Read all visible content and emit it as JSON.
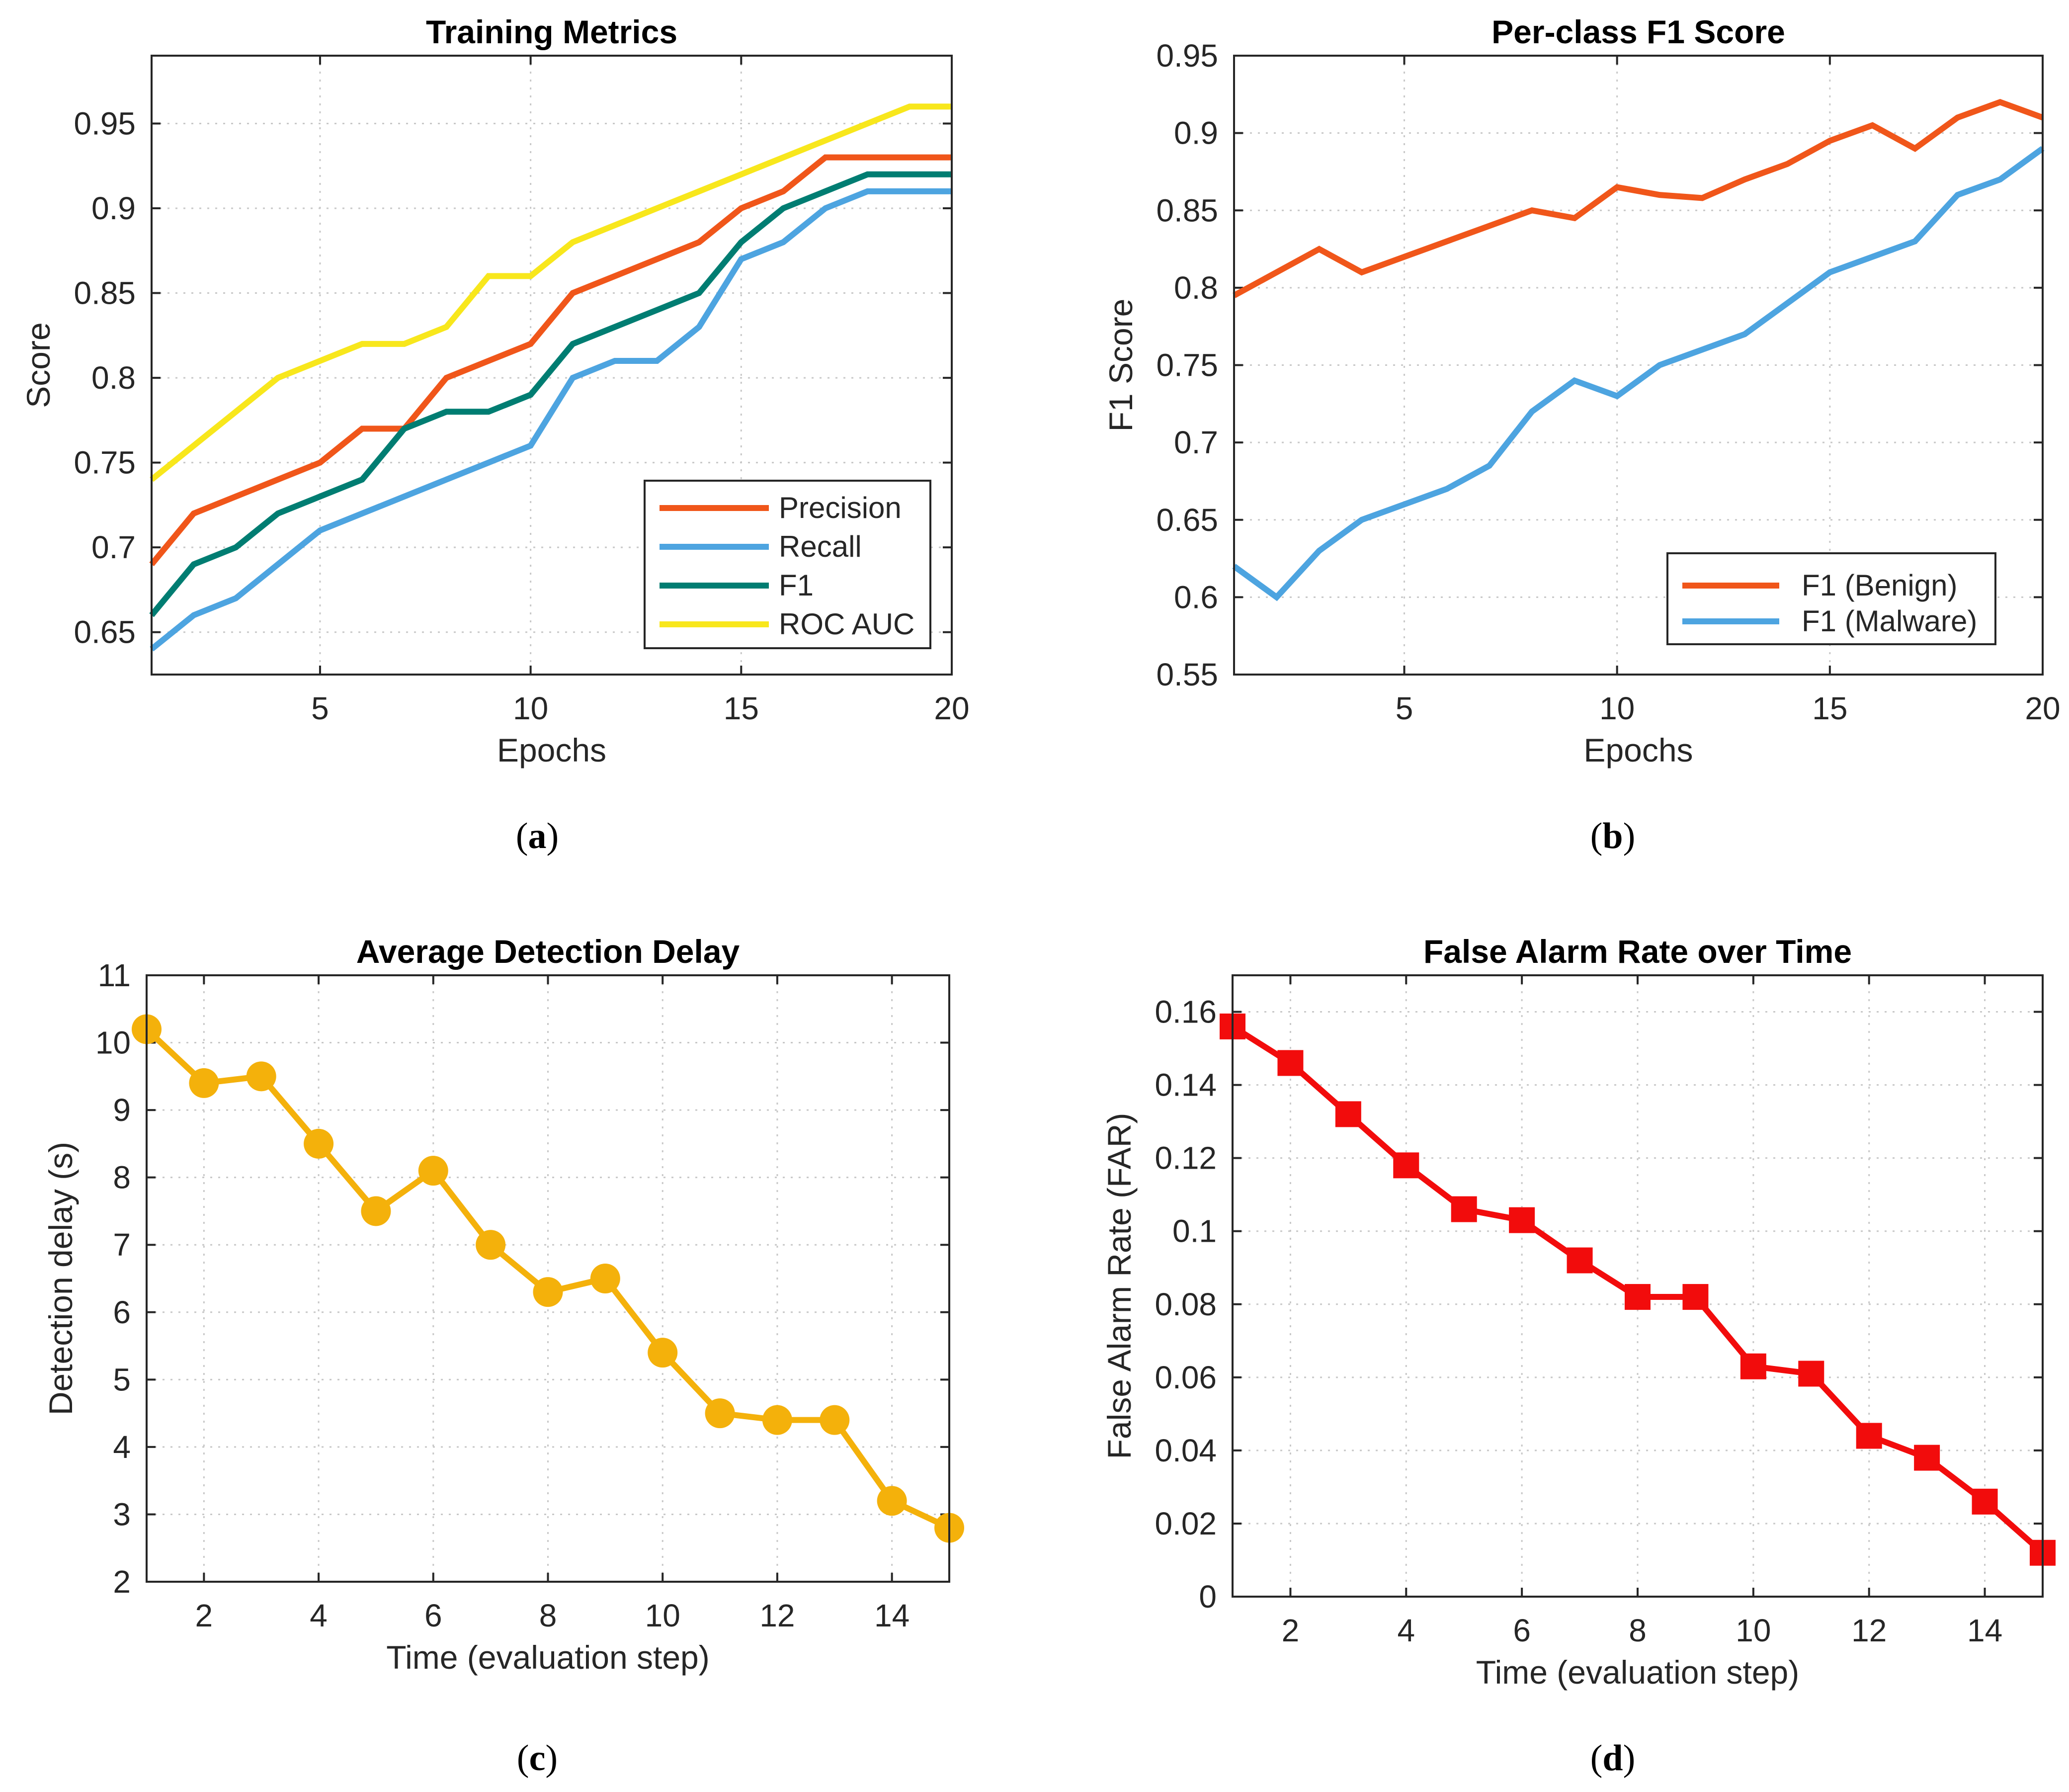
{
  "figure": {
    "captions": [
      {
        "open": "(",
        "letter": "a",
        "close": ")"
      },
      {
        "open": "(",
        "letter": "b",
        "close": ")"
      },
      {
        "open": "(",
        "letter": "c",
        "close": ")"
      },
      {
        "open": "(",
        "letter": "d",
        "close": ")"
      }
    ]
  },
  "chart_data": [
    {
      "id": "a",
      "type": "line",
      "title": "Training Metrics",
      "xlabel": "Epochs",
      "ylabel": "Score",
      "xlim": [
        1,
        20
      ],
      "ylim": [
        0.625,
        0.99
      ],
      "xticks": [
        5,
        10,
        15,
        20
      ],
      "xtick_labels": [
        "5",
        "10",
        "15",
        "20"
      ],
      "yticks": [
        0.65,
        0.7,
        0.75,
        0.8,
        0.85,
        0.9,
        0.95
      ],
      "ytick_labels": [
        "0.65",
        "0.7",
        "0.75",
        "0.8",
        "0.85",
        "0.9",
        "0.95"
      ],
      "grid": true,
      "legend_position": "bottom-right",
      "x": [
        1,
        2,
        3,
        4,
        5,
        6,
        7,
        8,
        9,
        10,
        11,
        12,
        13,
        14,
        15,
        16,
        17,
        18,
        19,
        20
      ],
      "series": [
        {
          "name": "Precision",
          "color": "#F0561A",
          "marker": "none",
          "values": [
            0.69,
            0.72,
            0.73,
            0.74,
            0.75,
            0.77,
            0.77,
            0.8,
            0.81,
            0.82,
            0.85,
            0.86,
            0.87,
            0.88,
            0.9,
            0.91,
            0.93,
            0.93,
            0.93,
            0.93
          ]
        },
        {
          "name": "Recall",
          "color": "#4DA4E0",
          "marker": "none",
          "values": [
            0.64,
            0.66,
            0.67,
            0.69,
            0.71,
            0.72,
            0.73,
            0.74,
            0.75,
            0.76,
            0.8,
            0.81,
            0.81,
            0.83,
            0.87,
            0.88,
            0.9,
            0.91,
            0.91,
            0.91
          ]
        },
        {
          "name": "F1",
          "color": "#007D72",
          "marker": "none",
          "values": [
            0.66,
            0.69,
            0.7,
            0.72,
            0.73,
            0.74,
            0.77,
            0.78,
            0.78,
            0.79,
            0.82,
            0.83,
            0.84,
            0.85,
            0.88,
            0.9,
            0.91,
            0.92,
            0.92,
            0.92
          ]
        },
        {
          "name": "ROC AUC",
          "color": "#F8E71C",
          "marker": "none",
          "values": [
            0.74,
            0.76,
            0.78,
            0.8,
            0.81,
            0.82,
            0.82,
            0.83,
            0.86,
            0.86,
            0.88,
            0.89,
            0.9,
            0.91,
            0.92,
            0.93,
            0.94,
            0.95,
            0.96,
            0.96
          ]
        }
      ]
    },
    {
      "id": "b",
      "type": "line",
      "title": "Per-class F1 Score",
      "xlabel": "Epochs",
      "ylabel": "F1 Score",
      "xlim": [
        1,
        20
      ],
      "ylim": [
        0.55,
        0.95
      ],
      "xticks": [
        5,
        10,
        15,
        20
      ],
      "xtick_labels": [
        "5",
        "10",
        "15",
        "20"
      ],
      "yticks": [
        0.55,
        0.6,
        0.65,
        0.7,
        0.75,
        0.8,
        0.85,
        0.9,
        0.95
      ],
      "ytick_labels": [
        "0.55",
        "0.6",
        "0.65",
        "0.7",
        "0.75",
        "0.8",
        "0.85",
        "0.9",
        "0.95"
      ],
      "grid": true,
      "legend_position": "bottom-right",
      "x": [
        1,
        2,
        3,
        4,
        5,
        6,
        7,
        8,
        9,
        10,
        11,
        12,
        13,
        14,
        15,
        16,
        17,
        18,
        19,
        20
      ],
      "series": [
        {
          "name": "F1 (Benign)",
          "color": "#F0561A",
          "marker": "none",
          "values": [
            0.795,
            0.81,
            0.825,
            0.81,
            0.82,
            0.83,
            0.84,
            0.85,
            0.845,
            0.865,
            0.86,
            0.858,
            0.87,
            0.88,
            0.895,
            0.905,
            0.89,
            0.91,
            0.92,
            0.91
          ]
        },
        {
          "name": "F1 (Malware)",
          "color": "#4DA4E0",
          "marker": "none",
          "values": [
            0.62,
            0.6,
            0.63,
            0.65,
            0.66,
            0.67,
            0.685,
            0.72,
            0.74,
            0.73,
            0.75,
            0.76,
            0.77,
            0.79,
            0.81,
            0.82,
            0.83,
            0.86,
            0.87,
            0.89
          ]
        }
      ]
    },
    {
      "id": "c",
      "type": "line",
      "title": "Average Detection Delay",
      "xlabel": "Time (evaluation step)",
      "ylabel": "Detection delay (s)",
      "xlim": [
        1,
        15
      ],
      "ylim": [
        2,
        11
      ],
      "xticks": [
        2,
        4,
        6,
        8,
        10,
        12,
        14
      ],
      "xtick_labels": [
        "2",
        "4",
        "6",
        "8",
        "10",
        "12",
        "14"
      ],
      "yticks": [
        2,
        3,
        4,
        5,
        6,
        7,
        8,
        9,
        10,
        11
      ],
      "ytick_labels": [
        "2",
        "3",
        "4",
        "5",
        "6",
        "7",
        "8",
        "9",
        "10",
        "11"
      ],
      "grid": true,
      "legend_position": "none",
      "x": [
        1,
        2,
        3,
        4,
        5,
        6,
        7,
        8,
        9,
        10,
        11,
        12,
        13,
        14,
        15
      ],
      "series": [
        {
          "name": "Detection delay",
          "color": "#F4B10B",
          "marker": "circle",
          "values": [
            10.2,
            9.4,
            9.5,
            8.5,
            7.5,
            8.1,
            7.0,
            6.3,
            6.5,
            5.4,
            4.5,
            4.4,
            4.4,
            3.2,
            2.8
          ]
        }
      ]
    },
    {
      "id": "d",
      "type": "line",
      "title": "False Alarm Rate over Time",
      "xlabel": "Time (evaluation step)",
      "ylabel": "False Alarm Rate (FAR)",
      "xlim": [
        1,
        15
      ],
      "ylim": [
        0,
        0.17
      ],
      "xticks": [
        2,
        4,
        6,
        8,
        10,
        12,
        14
      ],
      "xtick_labels": [
        "2",
        "4",
        "6",
        "8",
        "10",
        "12",
        "14"
      ],
      "yticks": [
        0,
        0.02,
        0.04,
        0.06,
        0.08,
        0.1,
        0.12,
        0.14,
        0.16
      ],
      "ytick_labels": [
        "0",
        "0.02",
        "0.04",
        "0.06",
        "0.08",
        "0.1",
        "0.12",
        "0.14",
        "0.16"
      ],
      "grid": true,
      "legend_position": "none",
      "x": [
        1,
        2,
        3,
        4,
        5,
        6,
        7,
        8,
        9,
        10,
        11,
        12,
        13,
        14,
        15
      ],
      "series": [
        {
          "name": "FAR",
          "color": "#F20C0C",
          "marker": "square",
          "values": [
            0.156,
            0.146,
            0.132,
            0.118,
            0.106,
            0.103,
            0.092,
            0.082,
            0.082,
            0.063,
            0.061,
            0.044,
            0.038,
            0.026,
            0.012
          ]
        }
      ]
    }
  ]
}
